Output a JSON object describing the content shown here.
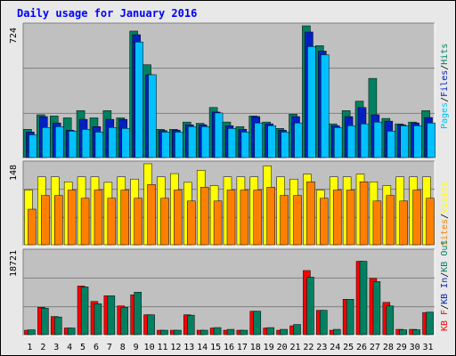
{
  "window": {
    "title": "Daily usage for January 2016"
  },
  "colors": {
    "pages": "#00c0ff",
    "files": "#0020c0",
    "hits": "#008060",
    "sites": "#ff8000",
    "visits": "#ffff00",
    "kb_in": "#008060",
    "kb_out": "#ff0000",
    "panel_bg": "#c0c0c0",
    "weekend_day_label": "#00a060"
  },
  "chart_data": [
    {
      "type": "bar",
      "categories": [
        "1",
        "2",
        "3",
        "4",
        "5",
        "6",
        "7",
        "8",
        "9",
        "10",
        "11",
        "12",
        "13",
        "14",
        "15",
        "16",
        "17",
        "18",
        "19",
        "20",
        "21",
        "22",
        "23",
        "24",
        "25",
        "26",
        "27",
        "28",
        "29",
        "30",
        "31"
      ],
      "weekend_days": [
        "2",
        "3",
        "9",
        "10",
        "16",
        "17",
        "23",
        "24",
        "30",
        "31"
      ],
      "ylim": [
        0,
        724
      ],
      "ytick_label": "724",
      "grid": true,
      "legend_labels": [
        "Pages",
        "Files",
        "Hits"
      ],
      "legend_separator": "/",
      "series": [
        {
          "name": "Hits",
          "values": [
            155,
            235,
            228,
            218,
            258,
            218,
            258,
            218,
            695,
            510,
            155,
            155,
            195,
            188,
            275,
            195,
            170,
            228,
            195,
            160,
            238,
            724,
            615,
            185,
            258,
            310,
            435,
            215,
            185,
            195,
            258
          ]
        },
        {
          "name": "Files",
          "values": [
            140,
            225,
            190,
            150,
            210,
            170,
            210,
            210,
            675,
            455,
            148,
            150,
            180,
            180,
            250,
            175,
            155,
            225,
            185,
            150,
            225,
            690,
            585,
            175,
            225,
            275,
            235,
            200,
            180,
            190,
            220
          ]
        },
        {
          "name": "Pages",
          "values": [
            125,
            165,
            170,
            145,
            155,
            140,
            165,
            160,
            635,
            455,
            140,
            140,
            170,
            170,
            245,
            160,
            140,
            190,
            175,
            140,
            190,
            610,
            565,
            165,
            175,
            185,
            195,
            145,
            175,
            175,
            190
          ]
        }
      ]
    },
    {
      "type": "bar",
      "categories": [
        "1",
        "2",
        "3",
        "4",
        "5",
        "6",
        "7",
        "8",
        "9",
        "10",
        "11",
        "12",
        "13",
        "14",
        "15",
        "16",
        "17",
        "18",
        "19",
        "20",
        "21",
        "22",
        "23",
        "24",
        "25",
        "26",
        "27",
        "28",
        "29",
        "30",
        "31"
      ],
      "ylim": [
        0,
        148
      ],
      "ytick_label": "148",
      "grid": true,
      "legend_labels": [
        "Sites",
        "Visits"
      ],
      "legend_separator": "/",
      "series": [
        {
          "name": "Visits",
          "values": [
            100,
            124,
            124,
            115,
            124,
            124,
            114,
            124,
            120,
            148,
            124,
            130,
            114,
            136,
            108,
            124,
            124,
            124,
            144,
            124,
            120,
            129,
            100,
            124,
            124,
            129,
            115,
            108,
            124,
            124,
            124
          ]
        },
        {
          "name": "Sites",
          "values": [
            65,
            90,
            90,
            100,
            85,
            100,
            85,
            100,
            85,
            110,
            85,
            100,
            80,
            105,
            80,
            100,
            100,
            100,
            105,
            90,
            90,
            115,
            85,
            100,
            100,
            115,
            80,
            90,
            80,
            100,
            85
          ]
        }
      ]
    },
    {
      "type": "bar",
      "categories": [
        "1",
        "2",
        "3",
        "4",
        "5",
        "6",
        "7",
        "8",
        "9",
        "10",
        "11",
        "12",
        "13",
        "14",
        "15",
        "16",
        "17",
        "18",
        "19",
        "20",
        "21",
        "22",
        "23",
        "24",
        "25",
        "26",
        "27",
        "28",
        "29",
        "30",
        "31"
      ],
      "ylim": [
        0,
        18721
      ],
      "ytick_label": "18721",
      "grid": true,
      "legend_labels": [
        "KB F",
        "KB In",
        "KB Out"
      ],
      "legend_separator": "/",
      "series": [
        {
          "name": "KB Out",
          "values": [
            1000,
            6200,
            4100,
            1500,
            11000,
            7500,
            8800,
            6500,
            9000,
            4500,
            1000,
            1000,
            4500,
            1000,
            1500,
            1000,
            1000,
            5300,
            1500,
            1000,
            2000,
            14500,
            5500,
            1000,
            8000,
            16600,
            12700,
            7300,
            1200,
            1200,
            5000
          ]
        },
        {
          "name": "KB In",
          "values": [
            1100,
            6000,
            4000,
            1500,
            10800,
            7000,
            8800,
            6200,
            9600,
            4500,
            1000,
            1000,
            4400,
            1000,
            1600,
            1200,
            1000,
            5300,
            1600,
            1200,
            2300,
            13000,
            5500,
            1200,
            8000,
            16600,
            12000,
            6500,
            1100,
            1100,
            5100
          ]
        }
      ]
    }
  ]
}
